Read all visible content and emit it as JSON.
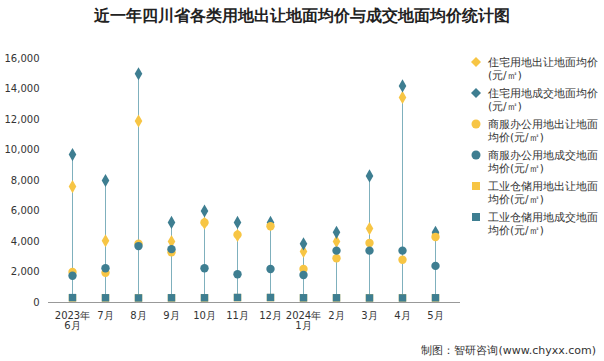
{
  "chart_data": {
    "type": "scatter",
    "title": "近一年四川省各类用地出让地面均价与成交地面均价统计图",
    "caption": "制图：智研咨询(www.chyxx.com)",
    "categories": [
      "2023年6月",
      "7月",
      "8月",
      "9月",
      "10月",
      "11月",
      "12月",
      "2024年1月",
      "2月",
      "3月",
      "4月",
      "5月"
    ],
    "ylim": [
      0,
      16000
    ],
    "yticks": [
      0,
      2000,
      4000,
      6000,
      8000,
      10000,
      12000,
      14000,
      16000
    ],
    "grid": false,
    "legend": "right",
    "series": [
      {
        "name": "住宅用地出让地面均价(元/㎡)",
        "color": "#F7C544",
        "marker": "diamond",
        "values": [
          7600,
          4050,
          11900,
          4000,
          5200,
          4400,
          5100,
          3350,
          4000,
          4850,
          13450,
          4500
        ]
      },
      {
        "name": "住宅用地成交地面均价(元/㎡)",
        "color": "#3E7E91",
        "marker": "diamond",
        "values": [
          9700,
          8000,
          15000,
          5250,
          6000,
          5250,
          5250,
          3850,
          4600,
          8300,
          14200,
          4600
        ]
      },
      {
        "name": "商服办公用地出让地面均价(元/㎡)",
        "color": "#F7C544",
        "marker": "circle",
        "values": [
          2000,
          1950,
          3850,
          3300,
          5250,
          4450,
          5000,
          2200,
          2900,
          3900,
          2800,
          4300
        ]
      },
      {
        "name": "商服办公用地成交地面均价(元/㎡)",
        "color": "#3E7E91",
        "marker": "circle",
        "values": [
          1750,
          2250,
          3700,
          3500,
          2250,
          1850,
          2200,
          1800,
          3400,
          3400,
          3400,
          2400
        ]
      },
      {
        "name": "工业仓储用地出让地面均价(元/㎡)",
        "color": "#F7C544",
        "marker": "square",
        "values": [
          300,
          300,
          300,
          300,
          300,
          320,
          320,
          300,
          300,
          300,
          300,
          300
        ]
      },
      {
        "name": "工业仓储用地成交地面均价(元/㎡)",
        "color": "#3E7E91",
        "marker": "square",
        "values": [
          320,
          310,
          300,
          310,
          310,
          330,
          330,
          310,
          310,
          300,
          300,
          310
        ]
      }
    ]
  }
}
